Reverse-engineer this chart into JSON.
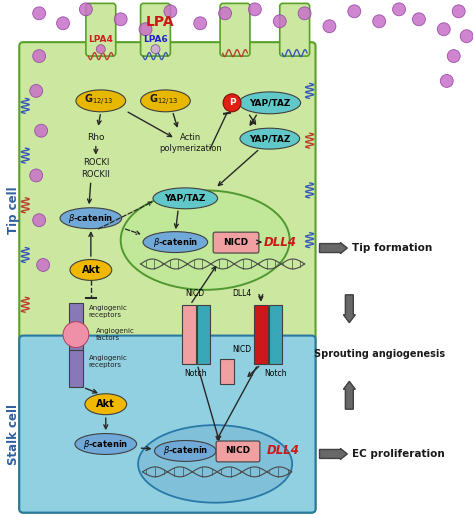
{
  "title": "LPA",
  "tip_cell_label": "Tip cell",
  "stalk_cell_label": "Stalk cell",
  "lpa4_label": "LPA4",
  "lpa6_label": "LPA6",
  "rho_label": "Rho",
  "rock_label": "ROCKI\nROCKII",
  "actin_label": "Actin\npolymerization",
  "beta_cat_label": "β-catenin",
  "nicd_label": "NICD",
  "dll4_label": "DLL4",
  "akt_label": "Akt",
  "notch_label": "Notch",
  "tip_formation_label": "Tip formation",
  "sprouting_label": "Sprouting angiogenesis",
  "ec_prolif_label": "EC proliferation",
  "angio_receptors1": "Angiogenic\nreceptors",
  "angio_factors": "Angiogenic\nfactors",
  "angio_receptors2": "Angiogenic\nreceptors",
  "bg_color": "#ffffff",
  "tip_cell_color": "#cce8a0",
  "stalk_cell_color": "#90d0e0",
  "nucleus_tip_color": "#b8e0a0",
  "nucleus_stalk_color": "#80c0d8",
  "g1213_color": "#e8b800",
  "yap_taz_box_color": "#60c8c8",
  "beta_cat_color": "#70a8d8",
  "nicd_color": "#f0a0a0",
  "akt_color": "#f0b800",
  "receptor_purple": "#8878b8",
  "arrow_color": "#282828",
  "dll4_red": "#cc1818",
  "notch_teal": "#38a8b8",
  "dll4_bar_color": "#cc1818",
  "p_circle_color": "#e02010",
  "lpa4_color": "#cc2020",
  "lpa6_color": "#2020cc",
  "coil_blue": "#3858b8",
  "coil_red": "#b84030",
  "lpa_dot_color": "#c870c8",
  "cell_border_green": "#58a028",
  "cell_border_blue": "#2878a0"
}
